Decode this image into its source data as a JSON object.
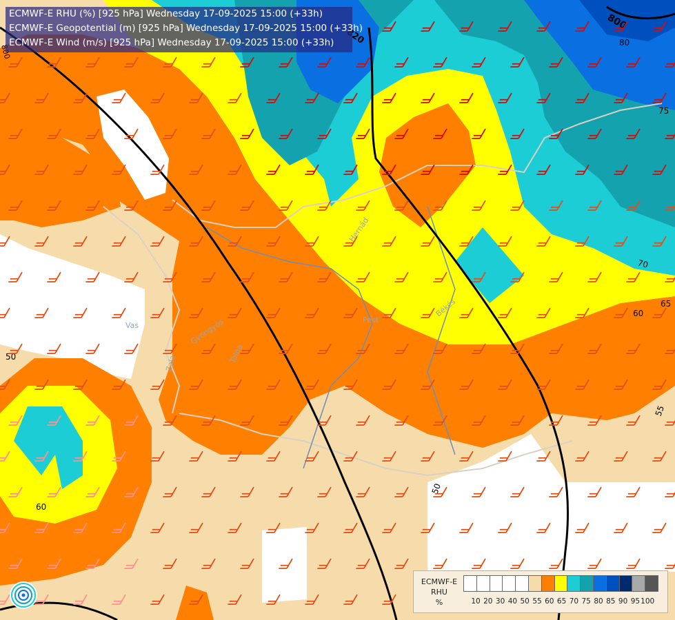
{
  "header": {
    "line1": "ECMWF-E RHU (%) [925 hPa] Wednesday 17-09-2025 15:00 (+33h)",
    "line2": "ECMWF-E Geopotential (m) [925 hPa] Wednesday 17-09-2025 15:00 (+33h)",
    "line3": "ECMWF-E Wind (m/s) [925 hPa] Wednesday 17-09-2025 15:00 (+33h)"
  },
  "legend": {
    "title_lines": [
      "ECMWF-E",
      "RHU",
      "%"
    ],
    "levels": [
      "10",
      "20",
      "30",
      "40",
      "50",
      "55",
      "60",
      "65",
      "70",
      "75",
      "80",
      "85",
      "90",
      "95",
      "100"
    ],
    "colors": [
      "#ffffff",
      "#ffffff",
      "#ffffff",
      "#ffffff",
      "#ffffff",
      "#f7dcab",
      "#ff8000",
      "#ffff00",
      "#1ccdd6",
      "#14a3ae",
      "#0a6fe0",
      "#004fbf",
      "#002970",
      "#a9a9a9",
      "#565656"
    ]
  },
  "colors": {
    "tan": "#f7dcab",
    "orange": "#ff8000",
    "yellow": "#ffff00",
    "cyan": "#1ccdd6",
    "teal": "#14a3ae",
    "blue": "#0a6fe0",
    "darkblue": "#004fbf",
    "white": "#ffffff",
    "contour": "#000000",
    "border": "#d9d0c4",
    "river": "#6e8db8"
  },
  "isohypse_labels": [
    "800",
    "820",
    "800"
  ],
  "rhu_contour_labels": [
    "80",
    "75",
    "70",
    "65",
    "60",
    "55",
    "50",
    "50",
    "60"
  ],
  "place_labels": [
    "Hernád",
    "Pest",
    "Békés",
    "Vas",
    "Zala",
    "Tolna",
    "Gyöngyös"
  ],
  "logo": "ecmwf-swirl-icon"
}
